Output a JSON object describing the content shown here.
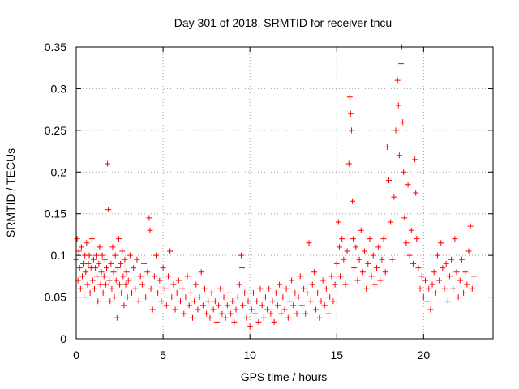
{
  "chart_data": {
    "type": "scatter",
    "title": "Day 301 of 2018, SRMTID for receiver tncu",
    "xlabel": "GPS time / hours",
    "ylabel": "SRMTID / TECUs",
    "xlim": [
      0,
      24
    ],
    "ylim": [
      0,
      0.35
    ],
    "x_ticks": [
      0,
      5,
      10,
      15,
      20
    ],
    "x_tick_labels": [
      "0",
      "5",
      "10",
      "15",
      "20"
    ],
    "y_ticks": [
      0,
      0.05,
      0.1,
      0.15,
      0.2,
      0.25,
      0.3,
      0.35
    ],
    "y_tick_labels": [
      "0",
      "0.05",
      "0.1",
      "0.15",
      "0.2",
      "0.25",
      "0.3",
      "0.35"
    ],
    "grid": true,
    "marker": "+",
    "color": "#ff0000",
    "series": [
      {
        "points": [
          [
            0.0,
            0.095
          ],
          [
            0.05,
            0.12
          ],
          [
            0.1,
            0.07
          ],
          [
            0.15,
            0.105
          ],
          [
            0.2,
            0.085
          ],
          [
            0.25,
            0.06
          ],
          [
            0.3,
            0.11
          ],
          [
            0.35,
            0.075
          ],
          [
            0.4,
            0.09
          ],
          [
            0.45,
            0.05
          ],
          [
            0.5,
            0.1
          ],
          [
            0.55,
            0.08
          ],
          [
            0.6,
            0.115
          ],
          [
            0.65,
            0.065
          ],
          [
            0.7,
            0.09
          ],
          [
            0.75,
            0.1
          ],
          [
            0.8,
            0.055
          ],
          [
            0.85,
            0.085
          ],
          [
            0.9,
            0.12
          ],
          [
            0.95,
            0.07
          ],
          [
            1.0,
            0.095
          ],
          [
            1.05,
            0.06
          ],
          [
            1.1,
            0.085
          ],
          [
            1.15,
            0.1
          ],
          [
            1.2,
            0.075
          ],
          [
            1.25,
            0.045
          ],
          [
            1.3,
            0.09
          ],
          [
            1.35,
            0.11
          ],
          [
            1.4,
            0.065
          ],
          [
            1.45,
            0.08
          ],
          [
            1.5,
            0.1
          ],
          [
            1.55,
            0.055
          ],
          [
            1.6,
            0.075
          ],
          [
            1.65,
            0.095
          ],
          [
            1.7,
            0.065
          ],
          [
            1.75,
            0.085
          ],
          [
            1.8,
            0.21
          ],
          [
            1.85,
            0.155
          ],
          [
            1.9,
            0.07
          ],
          [
            1.95,
            0.045
          ],
          [
            2.0,
            0.09
          ],
          [
            2.05,
            0.06
          ],
          [
            2.1,
            0.11
          ],
          [
            2.15,
            0.08
          ],
          [
            2.2,
            0.05
          ],
          [
            2.25,
            0.1
          ],
          [
            2.3,
            0.07
          ],
          [
            2.35,
            0.025
          ],
          [
            2.4,
            0.085
          ],
          [
            2.45,
            0.12
          ],
          [
            2.5,
            0.065
          ],
          [
            2.55,
            0.09
          ],
          [
            2.6,
            0.055
          ],
          [
            2.65,
            0.105
          ],
          [
            2.7,
            0.075
          ],
          [
            2.75,
            0.04
          ],
          [
            2.8,
            0.095
          ],
          [
            2.85,
            0.065
          ],
          [
            2.9,
            0.08
          ],
          [
            2.95,
            0.05
          ],
          [
            3.0,
            0.07
          ],
          [
            3.1,
            0.1
          ],
          [
            3.2,
            0.055
          ],
          [
            3.3,
            0.085
          ],
          [
            3.4,
            0.06
          ],
          [
            3.5,
            0.095
          ],
          [
            3.6,
            0.045
          ],
          [
            3.7,
            0.075
          ],
          [
            3.8,
            0.065
          ],
          [
            3.9,
            0.09
          ],
          [
            4.0,
            0.05
          ],
          [
            4.1,
            0.08
          ],
          [
            4.2,
            0.145
          ],
          [
            4.25,
            0.13
          ],
          [
            4.3,
            0.06
          ],
          [
            4.4,
            0.035
          ],
          [
            4.5,
            0.075
          ],
          [
            4.6,
            0.1
          ],
          [
            4.7,
            0.055
          ],
          [
            4.8,
            0.07
          ],
          [
            4.9,
            0.045
          ],
          [
            5.0,
            0.085
          ],
          [
            5.1,
            0.06
          ],
          [
            5.2,
            0.04
          ],
          [
            5.3,
            0.075
          ],
          [
            5.4,
            0.105
          ],
          [
            5.5,
            0.05
          ],
          [
            5.6,
            0.065
          ],
          [
            5.7,
            0.035
          ],
          [
            5.8,
            0.055
          ],
          [
            5.9,
            0.07
          ],
          [
            6.0,
            0.045
          ],
          [
            6.1,
            0.06
          ],
          [
            6.2,
            0.03
          ],
          [
            6.3,
            0.05
          ],
          [
            6.4,
            0.075
          ],
          [
            6.5,
            0.04
          ],
          [
            6.6,
            0.055
          ],
          [
            6.7,
            0.025
          ],
          [
            6.8,
            0.045
          ],
          [
            6.9,
            0.065
          ],
          [
            7.0,
            0.035
          ],
          [
            7.1,
            0.05
          ],
          [
            7.2,
            0.08
          ],
          [
            7.3,
            0.04
          ],
          [
            7.4,
            0.06
          ],
          [
            7.5,
            0.03
          ],
          [
            7.6,
            0.045
          ],
          [
            7.7,
            0.025
          ],
          [
            7.8,
            0.055
          ],
          [
            7.9,
            0.035
          ],
          [
            8.0,
            0.045
          ],
          [
            8.1,
            0.02
          ],
          [
            8.2,
            0.04
          ],
          [
            8.3,
            0.06
          ],
          [
            8.4,
            0.03
          ],
          [
            8.5,
            0.05
          ],
          [
            8.6,
            0.025
          ],
          [
            8.7,
            0.04
          ],
          [
            8.8,
            0.055
          ],
          [
            8.9,
            0.03
          ],
          [
            9.0,
            0.045
          ],
          [
            9.1,
            0.02
          ],
          [
            9.2,
            0.035
          ],
          [
            9.3,
            0.05
          ],
          [
            9.4,
            0.065
          ],
          [
            9.5,
            0.1
          ],
          [
            9.55,
            0.085
          ],
          [
            9.6,
            0.04
          ],
          [
            9.7,
            0.055
          ],
          [
            9.8,
            0.025
          ],
          [
            9.9,
            0.045
          ],
          [
            10.0,
            0.015
          ],
          [
            10.1,
            0.035
          ],
          [
            10.2,
            0.055
          ],
          [
            10.3,
            0.03
          ],
          [
            10.4,
            0.045
          ],
          [
            10.5,
            0.02
          ],
          [
            10.6,
            0.06
          ],
          [
            10.7,
            0.04
          ],
          [
            10.8,
            0.025
          ],
          [
            10.9,
            0.05
          ],
          [
            11.0,
            0.035
          ],
          [
            11.1,
            0.06
          ],
          [
            11.2,
            0.03
          ],
          [
            11.3,
            0.045
          ],
          [
            11.4,
            0.02
          ],
          [
            11.5,
            0.055
          ],
          [
            11.6,
            0.04
          ],
          [
            11.7,
            0.065
          ],
          [
            11.8,
            0.03
          ],
          [
            11.9,
            0.05
          ],
          [
            12.0,
            0.035
          ],
          [
            12.1,
            0.06
          ],
          [
            12.2,
            0.025
          ],
          [
            12.3,
            0.045
          ],
          [
            12.4,
            0.07
          ],
          [
            12.5,
            0.04
          ],
          [
            12.6,
            0.055
          ],
          [
            12.7,
            0.03
          ],
          [
            12.8,
            0.05
          ],
          [
            12.9,
            0.075
          ],
          [
            13.0,
            0.04
          ],
          [
            13.1,
            0.06
          ],
          [
            13.2,
            0.03
          ],
          [
            13.3,
            0.055
          ],
          [
            13.4,
            0.115
          ],
          [
            13.5,
            0.045
          ],
          [
            13.6,
            0.065
          ],
          [
            13.7,
            0.08
          ],
          [
            13.8,
            0.035
          ],
          [
            13.9,
            0.055
          ],
          [
            14.0,
            0.025
          ],
          [
            14.1,
            0.045
          ],
          [
            14.2,
            0.07
          ],
          [
            14.3,
            0.04
          ],
          [
            14.4,
            0.06
          ],
          [
            14.5,
            0.03
          ],
          [
            14.6,
            0.05
          ],
          [
            14.7,
            0.075
          ],
          [
            14.8,
            0.045
          ],
          [
            14.9,
            0.065
          ],
          [
            15.0,
            0.09
          ],
          [
            15.1,
            0.14
          ],
          [
            15.15,
            0.11
          ],
          [
            15.2,
            0.075
          ],
          [
            15.3,
            0.12
          ],
          [
            15.4,
            0.095
          ],
          [
            15.5,
            0.065
          ],
          [
            15.6,
            0.105
          ],
          [
            15.7,
            0.21
          ],
          [
            15.75,
            0.29
          ],
          [
            15.8,
            0.27
          ],
          [
            15.85,
            0.25
          ],
          [
            15.9,
            0.165
          ],
          [
            15.95,
            0.12
          ],
          [
            16.0,
            0.085
          ],
          [
            16.1,
            0.11
          ],
          [
            16.2,
            0.07
          ],
          [
            16.3,
            0.095
          ],
          [
            16.4,
            0.13
          ],
          [
            16.5,
            0.08
          ],
          [
            16.6,
            0.105
          ],
          [
            16.7,
            0.06
          ],
          [
            16.8,
            0.09
          ],
          [
            16.9,
            0.12
          ],
          [
            17.0,
            0.075
          ],
          [
            17.1,
            0.1
          ],
          [
            17.2,
            0.065
          ],
          [
            17.3,
            0.085
          ],
          [
            17.4,
            0.11
          ],
          [
            17.5,
            0.07
          ],
          [
            17.6,
            0.095
          ],
          [
            17.7,
            0.12
          ],
          [
            17.8,
            0.08
          ],
          [
            17.9,
            0.23
          ],
          [
            18.0,
            0.19
          ],
          [
            18.1,
            0.14
          ],
          [
            18.2,
            0.095
          ],
          [
            18.3,
            0.17
          ],
          [
            18.4,
            0.25
          ],
          [
            18.5,
            0.31
          ],
          [
            18.55,
            0.28
          ],
          [
            18.6,
            0.22
          ],
          [
            18.7,
            0.33
          ],
          [
            18.75,
            0.35
          ],
          [
            18.8,
            0.26
          ],
          [
            18.85,
            0.2
          ],
          [
            18.9,
            0.145
          ],
          [
            19.0,
            0.115
          ],
          [
            19.1,
            0.185
          ],
          [
            19.2,
            0.1
          ],
          [
            19.3,
            0.13
          ],
          [
            19.4,
            0.09
          ],
          [
            19.5,
            0.215
          ],
          [
            19.55,
            0.175
          ],
          [
            19.6,
            0.12
          ],
          [
            19.7,
            0.085
          ],
          [
            19.8,
            0.06
          ],
          [
            19.9,
            0.075
          ],
          [
            20.0,
            0.05
          ],
          [
            20.1,
            0.07
          ],
          [
            20.2,
            0.045
          ],
          [
            20.3,
            0.06
          ],
          [
            20.4,
            0.035
          ],
          [
            20.5,
            0.065
          ],
          [
            20.6,
            0.08
          ],
          [
            20.7,
            0.055
          ],
          [
            20.8,
            0.1
          ],
          [
            20.9,
            0.07
          ],
          [
            21.0,
            0.115
          ],
          [
            21.1,
            0.085
          ],
          [
            21.2,
            0.06
          ],
          [
            21.3,
            0.09
          ],
          [
            21.4,
            0.045
          ],
          [
            21.5,
            0.075
          ],
          [
            21.6,
            0.095
          ],
          [
            21.7,
            0.06
          ],
          [
            21.8,
            0.12
          ],
          [
            21.9,
            0.08
          ],
          [
            22.0,
            0.05
          ],
          [
            22.1,
            0.07
          ],
          [
            22.2,
            0.095
          ],
          [
            22.3,
            0.055
          ],
          [
            22.4,
            0.08
          ],
          [
            22.5,
            0.065
          ],
          [
            22.6,
            0.105
          ],
          [
            22.7,
            0.135
          ],
          [
            22.8,
            0.06
          ],
          [
            22.9,
            0.075
          ]
        ]
      }
    ]
  }
}
